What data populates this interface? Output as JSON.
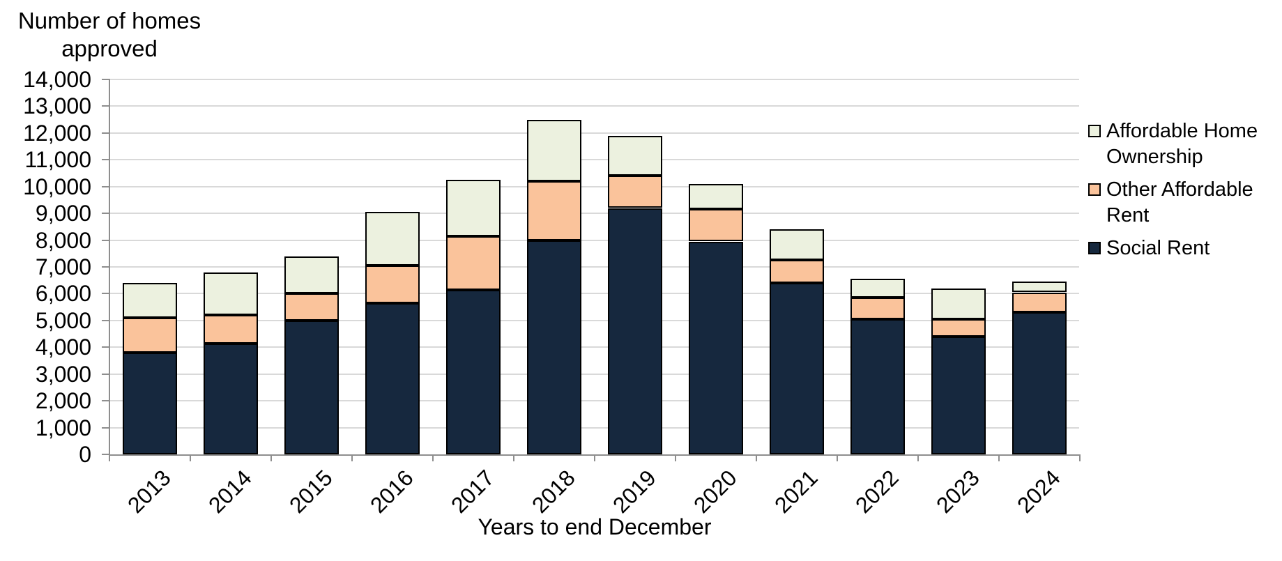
{
  "chart_data": {
    "type": "bar",
    "stacked": true,
    "title": "Number of homes approved",
    "ylabel_lines": [
      "Number of homes",
      "approved"
    ],
    "xlabel": "Years to end December",
    "categories": [
      "2013",
      "2014",
      "2015",
      "2016",
      "2017",
      "2018",
      "2019",
      "2020",
      "2021",
      "2022",
      "2023",
      "2024"
    ],
    "series": [
      {
        "name": "Social Rent",
        "color": "#16283E",
        "values": [
          3800,
          4150,
          5000,
          5650,
          6150,
          8000,
          9200,
          7950,
          6400,
          5050,
          4400,
          5300
        ]
      },
      {
        "name": "Other Affordable Rent",
        "color": "#FAC39B",
        "values": [
          1300,
          1050,
          1000,
          1400,
          2000,
          2200,
          1200,
          1200,
          850,
          800,
          650,
          750
        ]
      },
      {
        "name": "Affordable Home Ownership",
        "color": "#ECF1DF",
        "values": [
          1300,
          1600,
          1400,
          2000,
          2100,
          2300,
          1500,
          950,
          1150,
          700,
          1150,
          400
        ]
      }
    ],
    "totals": [
      6400,
      6800,
      7400,
      9050,
      10250,
      12500,
      11900,
      10100,
      8400,
      6550,
      6200,
      6450
    ],
    "ylim": [
      0,
      14000
    ],
    "ytick_interval": 1000,
    "ytick_labels": [
      "0",
      "1,000",
      "2,000",
      "3,000",
      "4,000",
      "5,000",
      "6,000",
      "7,000",
      "8,000",
      "9,000",
      "10,000",
      "11,000",
      "12,000",
      "13,000",
      "14,000"
    ],
    "grid": "horizontal",
    "legend_position": "right",
    "legend_order": [
      2,
      1,
      0
    ]
  },
  "colors": {
    "gridline": "#D9D9D9",
    "axis": "#8E8E8E",
    "bar_border": "#000000",
    "text": "#000000",
    "background": "#FFFFFF"
  }
}
